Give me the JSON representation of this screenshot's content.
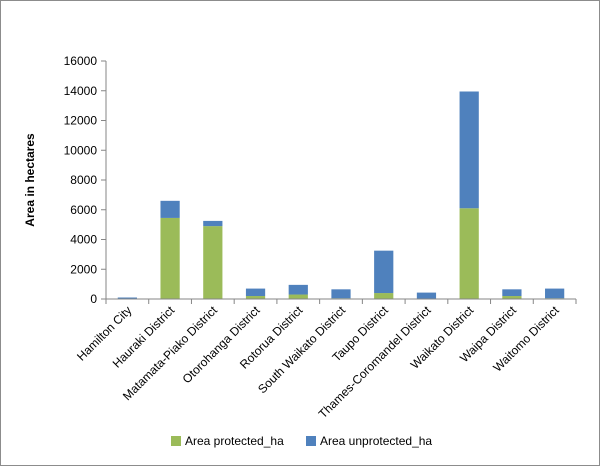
{
  "chart_data": {
    "type": "bar",
    "stacked": true,
    "title": "",
    "xlabel": "",
    "ylabel": "Area in hectares",
    "ylim": [
      0,
      16000
    ],
    "yticks": [
      0,
      2000,
      4000,
      6000,
      8000,
      10000,
      12000,
      14000,
      16000
    ],
    "grid": false,
    "legend_position": "bottom",
    "categories": [
      "Hamilton City",
      "Hauraki District",
      "Matamata-Piako District",
      "Otorohanga District",
      "Rotorua District",
      "South Waikato District",
      "Taupo District",
      "Thames-Coromandel District",
      "Waikato District",
      "Waipa District",
      "Waitomo District"
    ],
    "series": [
      {
        "name": "Area protected_ha",
        "color": "#9bbb59",
        "values": [
          0,
          5450,
          4900,
          200,
          300,
          50,
          400,
          30,
          6100,
          200,
          50
        ]
      },
      {
        "name": "Area unprotected_ha",
        "color": "#4f81bd",
        "values": [
          100,
          1150,
          350,
          500,
          650,
          600,
          2850,
          400,
          7850,
          450,
          650
        ]
      }
    ]
  }
}
